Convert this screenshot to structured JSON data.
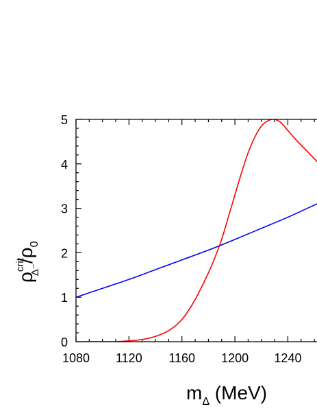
{
  "chart_data": {
    "type": "line",
    "xlabel": {
      "main": "m",
      "sub": "Δ",
      "rest": " (MeV)"
    },
    "ylabel": {
      "rho": "ρ",
      "sup": "crit",
      "sub": "Δ⁻",
      "slash": "/ρ",
      "sub0": "0"
    },
    "xlim": [
      1080,
      1262
    ],
    "ylim": [
      0,
      5
    ],
    "x_ticks": [
      1080,
      1120,
      1160,
      1200,
      1240
    ],
    "y_ticks": [
      0,
      1,
      2,
      3,
      4,
      5
    ],
    "grid": false,
    "series": [
      {
        "color": "#0000ff",
        "x": [
          1080,
          1100,
          1120,
          1140,
          1160,
          1180,
          1200,
          1220,
          1240,
          1262
        ],
        "y": [
          1.0,
          1.2,
          1.4,
          1.62,
          1.84,
          2.06,
          2.3,
          2.55,
          2.8,
          3.1
        ]
      },
      {
        "color": "#ff0000",
        "x": [
          1085,
          1100,
          1110,
          1120,
          1130,
          1140,
          1150,
          1160,
          1170,
          1180,
          1185,
          1190,
          1195,
          1200,
          1205,
          1210,
          1215,
          1220,
          1225,
          1230,
          1235,
          1240,
          1245,
          1250,
          1255,
          1262
        ],
        "y": [
          0.0,
          0.0,
          0.0,
          0.02,
          0.05,
          0.12,
          0.25,
          0.5,
          0.95,
          1.55,
          1.9,
          2.3,
          2.8,
          3.3,
          3.8,
          4.25,
          4.6,
          4.85,
          4.97,
          5.0,
          4.92,
          4.75,
          4.58,
          4.42,
          4.27,
          4.05
        ]
      }
    ]
  }
}
